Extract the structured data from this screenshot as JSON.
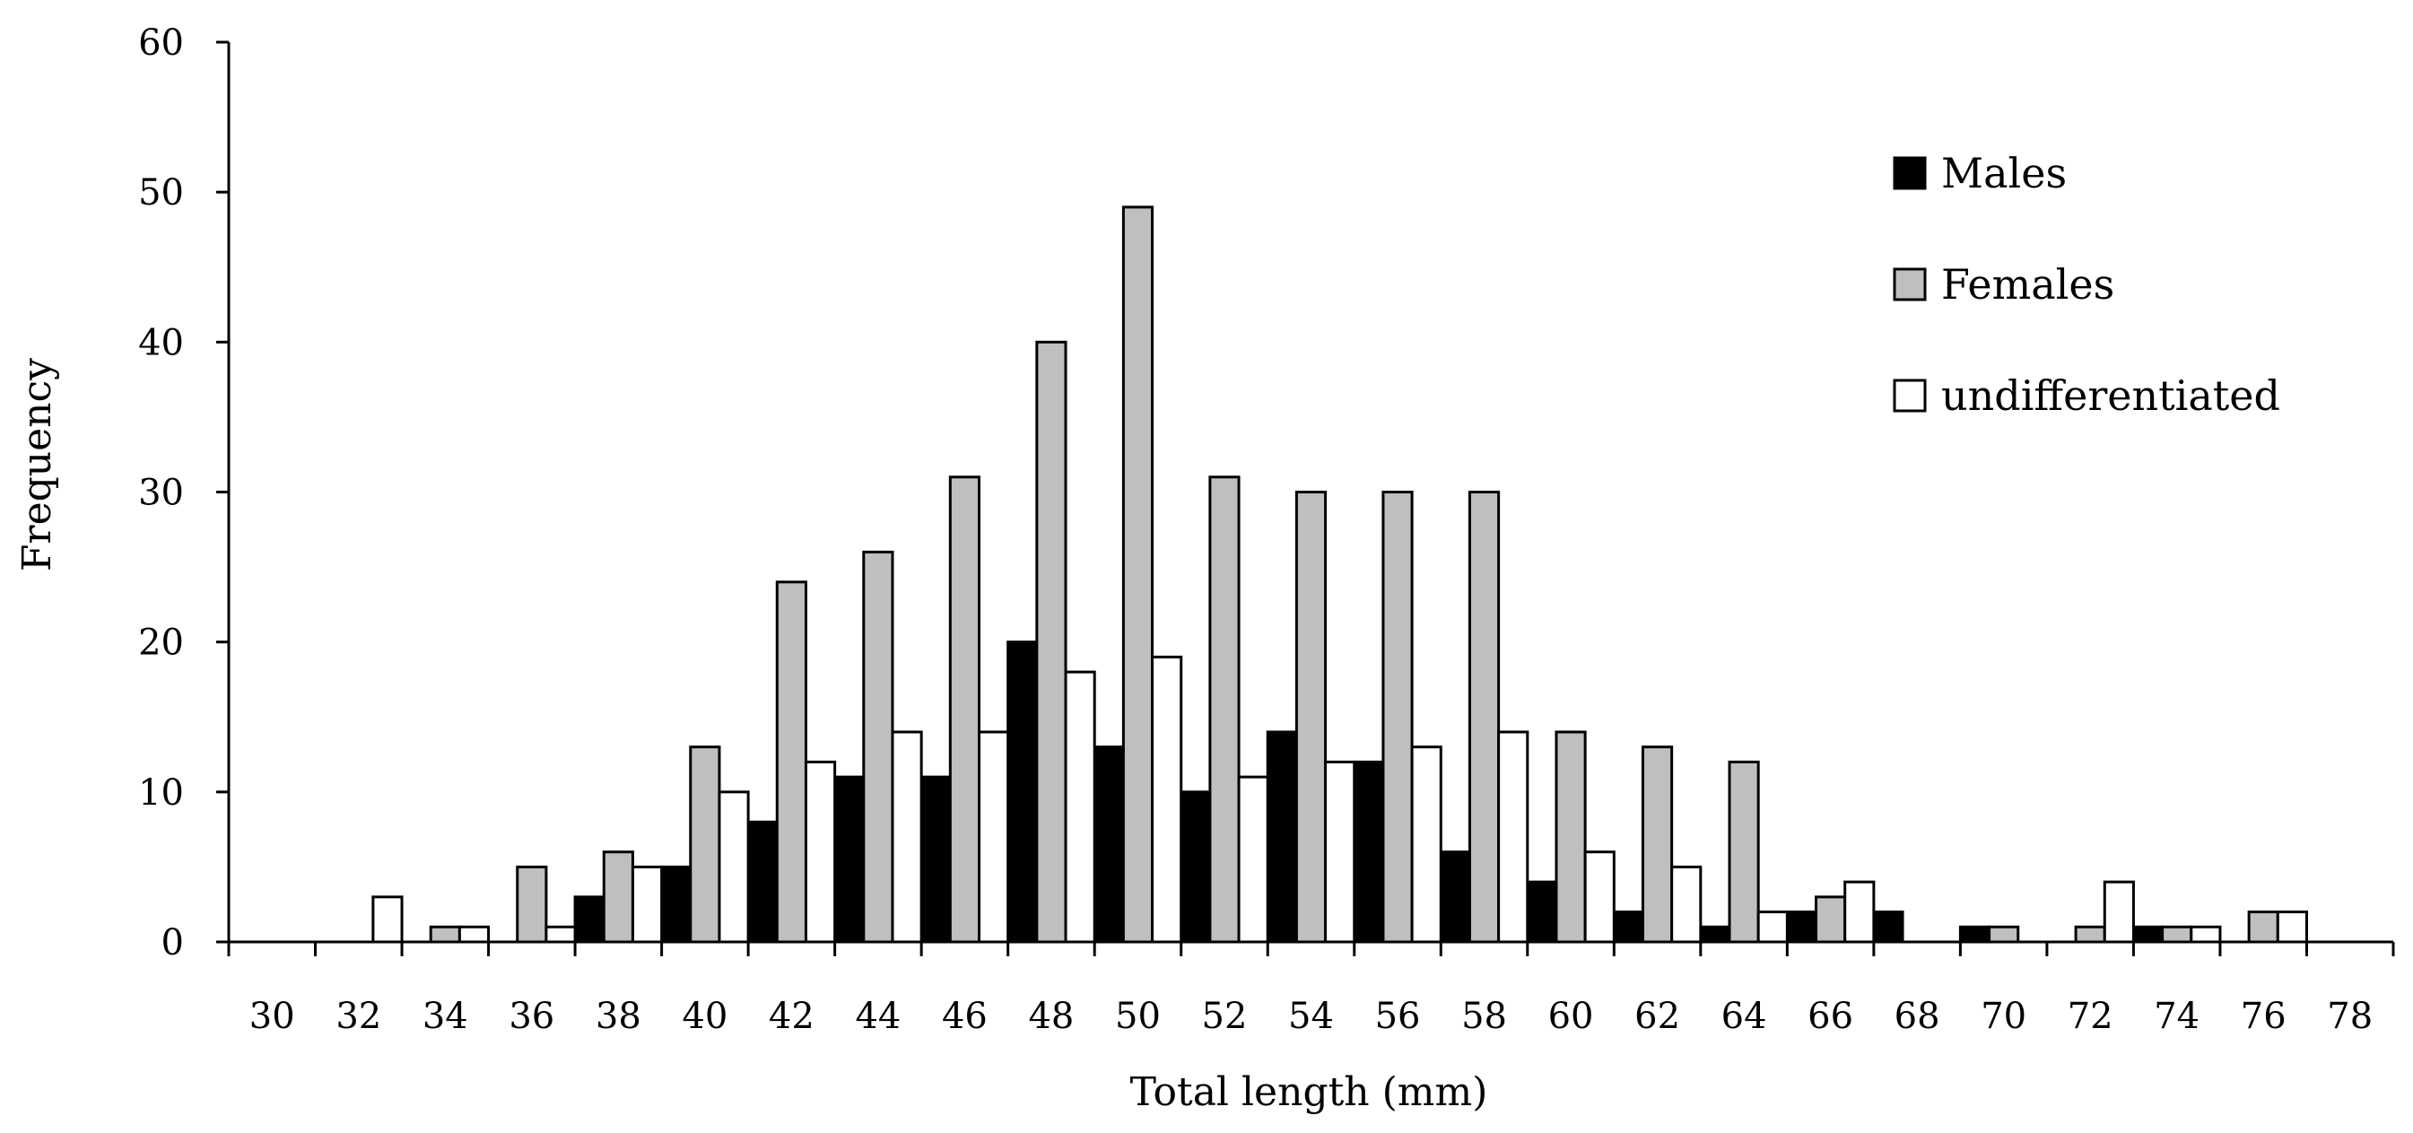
{
  "chart_data": {
    "type": "bar",
    "title": "",
    "xlabel": "Total length (mm)",
    "ylabel": "Frequency",
    "ylim": [
      0,
      60
    ],
    "yticks": [
      "0",
      "10",
      "20",
      "30",
      "40",
      "50",
      "60"
    ],
    "categories": [
      "30",
      "32",
      "34",
      "36",
      "38",
      "40",
      "42",
      "44",
      "46",
      "48",
      "50",
      "52",
      "54",
      "56",
      "58",
      "60",
      "62",
      "64",
      "66",
      "68",
      "70",
      "72",
      "74",
      "76",
      "78"
    ],
    "grid": false,
    "legend_position": "top-right",
    "series": [
      {
        "name": "Males",
        "color": "#000000",
        "values": [
          0,
          0,
          0,
          0,
          3,
          5,
          8,
          11,
          11,
          20,
          13,
          10,
          14,
          12,
          6,
          4,
          2,
          1,
          2,
          2,
          1,
          0,
          1,
          0,
          0
        ]
      },
      {
        "name": "Females",
        "color": "#bfbfbf",
        "values": [
          0,
          0,
          1,
          5,
          6,
          13,
          24,
          26,
          31,
          40,
          49,
          31,
          30,
          30,
          30,
          14,
          13,
          12,
          3,
          0,
          1,
          1,
          1,
          2,
          0
        ]
      },
      {
        "name": "undifferentiated",
        "color": "#ffffff",
        "values": [
          0,
          3,
          1,
          1,
          5,
          10,
          12,
          14,
          14,
          18,
          19,
          11,
          12,
          13,
          14,
          6,
          5,
          2,
          4,
          0,
          0,
          4,
          1,
          2,
          0
        ]
      }
    ]
  }
}
